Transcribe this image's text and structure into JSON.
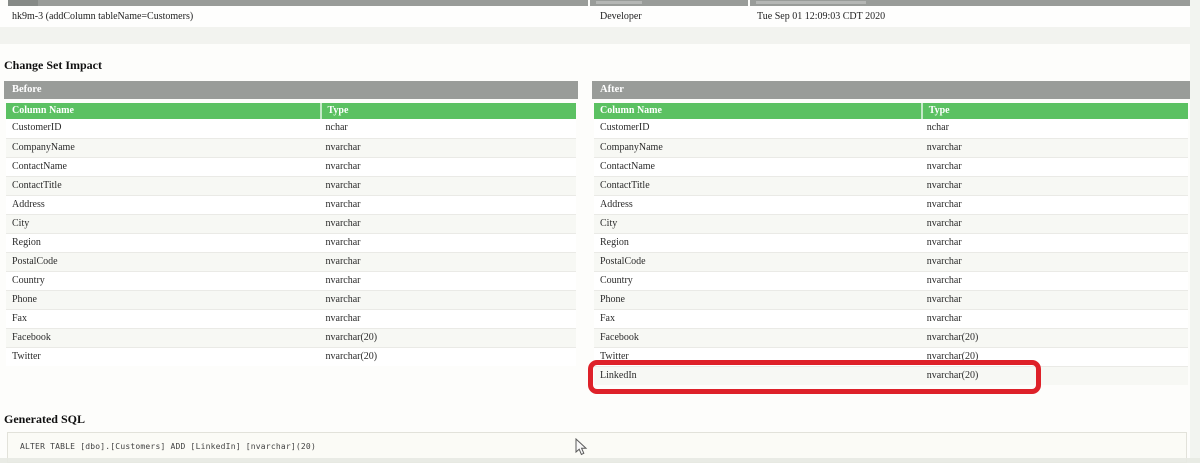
{
  "changeset_table": {
    "row": {
      "name": "hk9m-3 (addColumn tableName=Customers)",
      "author": "Developer",
      "date_executed": "Tue Sep 01 12:09:03 CDT 2020"
    }
  },
  "impact": {
    "heading": "Change Set Impact",
    "columns": [
      "Column Name",
      "Type"
    ],
    "before": {
      "title": "Before",
      "rows": [
        [
          "CustomerID",
          "nchar"
        ],
        [
          "CompanyName",
          "nvarchar"
        ],
        [
          "ContactName",
          "nvarchar"
        ],
        [
          "ContactTitle",
          "nvarchar"
        ],
        [
          "Address",
          "nvarchar"
        ],
        [
          "City",
          "nvarchar"
        ],
        [
          "Region",
          "nvarchar"
        ],
        [
          "PostalCode",
          "nvarchar"
        ],
        [
          "Country",
          "nvarchar"
        ],
        [
          "Phone",
          "nvarchar"
        ],
        [
          "Fax",
          "nvarchar"
        ],
        [
          "Facebook",
          "nvarchar(20)"
        ],
        [
          "Twitter",
          "nvarchar(20)"
        ]
      ]
    },
    "after": {
      "title": "After",
      "rows": [
        [
          "CustomerID",
          "nchar"
        ],
        [
          "CompanyName",
          "nvarchar"
        ],
        [
          "ContactName",
          "nvarchar"
        ],
        [
          "ContactTitle",
          "nvarchar"
        ],
        [
          "Address",
          "nvarchar"
        ],
        [
          "City",
          "nvarchar"
        ],
        [
          "Region",
          "nvarchar"
        ],
        [
          "PostalCode",
          "nvarchar"
        ],
        [
          "Country",
          "nvarchar"
        ],
        [
          "Phone",
          "nvarchar"
        ],
        [
          "Fax",
          "nvarchar"
        ],
        [
          "Facebook",
          "nvarchar(20)"
        ],
        [
          "Twitter",
          "nvarchar(20)"
        ],
        [
          "LinkedIn",
          "nvarchar(20)"
        ]
      ],
      "highlighted_row": "LinkedIn"
    }
  },
  "sql": {
    "heading": "Generated SQL",
    "statement": "ALTER TABLE [dbo].[Customers] ADD [LinkedIn] [nvarchar](20)"
  },
  "colors": {
    "accent_green": "#5bc162",
    "section_gray": "#999c99",
    "highlight_red": "#de2129"
  }
}
